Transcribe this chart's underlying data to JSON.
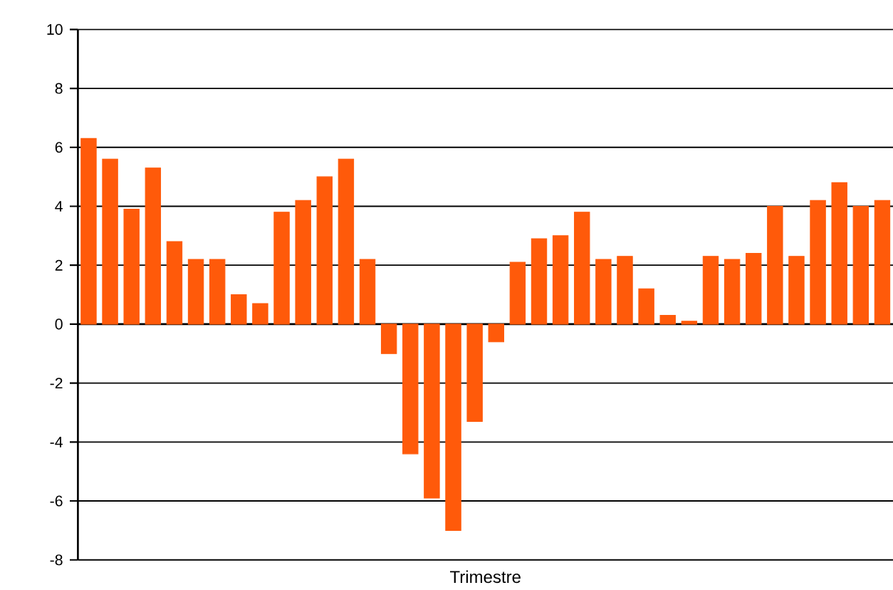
{
  "chart_data": {
    "type": "bar",
    "xlabel": "Trimestre",
    "categories": [
      null,
      null,
      null,
      null,
      null,
      null,
      null,
      null,
      null,
      null,
      null,
      null,
      null,
      null,
      null,
      null,
      null,
      null,
      null,
      null,
      null,
      null,
      null,
      null,
      null,
      null,
      null,
      null,
      null,
      null,
      null,
      null,
      null,
      null,
      null,
      null,
      null,
      null
    ],
    "values": [
      6.3,
      5.6,
      3.9,
      5.3,
      2.8,
      2.2,
      2.2,
      1.0,
      0.7,
      3.8,
      4.2,
      5.0,
      5.6,
      2.2,
      -1.0,
      -4.4,
      -5.9,
      -7.0,
      -3.3,
      -0.6,
      2.1,
      2.9,
      3.0,
      3.8,
      2.2,
      2.3,
      1.2,
      0.3,
      0.1,
      2.3,
      2.2,
      2.4,
      4.0,
      2.3,
      4.2,
      4.8,
      4.0,
      4.2
    ],
    "color": "#ff5a0a",
    "ylim": [
      -8,
      10
    ],
    "yticks": [
      -8,
      -6,
      -4,
      -2,
      0,
      2,
      4,
      6,
      8,
      10
    ],
    "grid": "y"
  }
}
